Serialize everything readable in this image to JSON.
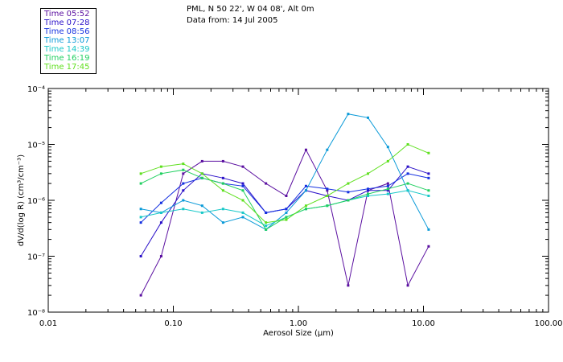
{
  "header": {
    "line1": "PML, N 50 22', W 04 08', Alt 0m",
    "line2": "Data from: 14 Jul 2005"
  },
  "legend": [
    {
      "label": "Time 05:52",
      "color": "#5a0fa0"
    },
    {
      "label": "Time 07:28",
      "color": "#2a10c8"
    },
    {
      "label": "Time 08:56",
      "color": "#1430e0"
    },
    {
      "label": "Time 13:07",
      "color": "#0a9ad8"
    },
    {
      "label": "Time 14:39",
      "color": "#18c8c8"
    },
    {
      "label": "Time 16:19",
      "color": "#20d060"
    },
    {
      "label": "Time 17:45",
      "color": "#60e020"
    }
  ],
  "chart_data": {
    "type": "line",
    "xscale": "log",
    "yscale": "log",
    "xlabel": "Aerosol Size (μm)",
    "ylabel": "dV/d(log R) (cm³/cm⁻³)",
    "xlim": [
      0.01,
      100.0
    ],
    "ylim": [
      1e-08,
      0.0001
    ],
    "xtick_values": [
      0.01,
      0.1,
      1.0,
      10.0,
      100.0
    ],
    "xtick_labels": [
      "0.01",
      "0.10",
      "1.00",
      "10.00",
      "100.00"
    ],
    "ytick_values": [
      1e-08,
      1e-07,
      1e-06,
      1e-05,
      0.0001
    ],
    "ytick_labels": [
      "10⁻⁸",
      "10⁻⁷",
      "10⁻⁶",
      "10⁻⁵",
      "10⁻⁴"
    ],
    "x": [
      0.055,
      0.08,
      0.12,
      0.17,
      0.25,
      0.36,
      0.55,
      0.8,
      1.15,
      1.7,
      2.5,
      3.6,
      5.2,
      7.5,
      11.0
    ],
    "series": [
      {
        "name": "Time 05:52",
        "color": "#5a0fa0",
        "values": [
          2e-08,
          1e-07,
          3e-06,
          5e-06,
          5e-06,
          4e-06,
          2e-06,
          1.2e-06,
          8e-06,
          1.5e-06,
          3e-08,
          1.5e-06,
          2e-06,
          3e-08,
          1.5e-07
        ]
      },
      {
        "name": "Time 07:28",
        "color": "#2a10c8",
        "values": [
          1e-07,
          4e-07,
          1.5e-06,
          3e-06,
          2.5e-06,
          2e-06,
          6e-07,
          7e-07,
          1.5e-06,
          1.2e-06,
          1e-06,
          1.5e-06,
          1.5e-06,
          4e-06,
          3e-06
        ]
      },
      {
        "name": "Time 08:56",
        "color": "#1430e0",
        "values": [
          4e-07,
          9e-07,
          2e-06,
          2.5e-06,
          2e-06,
          1.8e-06,
          6e-07,
          7e-07,
          1.8e-06,
          1.6e-06,
          1.4e-06,
          1.6e-06,
          1.8e-06,
          3e-06,
          2.5e-06
        ]
      },
      {
        "name": "Time 13:07",
        "color": "#0a9ad8",
        "values": [
          7e-07,
          6e-07,
          1e-06,
          8e-07,
          4e-07,
          5e-07,
          3e-07,
          6e-07,
          1.5e-06,
          8e-06,
          3.5e-05,
          3e-05,
          9e-06,
          1.5e-06,
          3e-07
        ]
      },
      {
        "name": "Time 14:39",
        "color": "#18c8c8",
        "values": [
          5e-07,
          6e-07,
          7e-07,
          6e-07,
          7e-07,
          6e-07,
          3.5e-07,
          5e-07,
          7e-07,
          8e-07,
          1e-06,
          1.2e-06,
          1.3e-06,
          1.5e-06,
          1.2e-06
        ]
      },
      {
        "name": "Time 16:19",
        "color": "#20d060",
        "values": [
          2e-06,
          3e-06,
          3.5e-06,
          2.5e-06,
          2e-06,
          1.5e-06,
          3e-07,
          5e-07,
          7e-07,
          8e-07,
          1e-06,
          1.3e-06,
          1.6e-06,
          2e-06,
          1.5e-06
        ]
      },
      {
        "name": "Time 17:45",
        "color": "#60e020",
        "values": [
          3e-06,
          4e-06,
          4.5e-06,
          3e-06,
          1.5e-06,
          1e-06,
          4e-07,
          4.5e-07,
          8e-07,
          1.2e-06,
          2e-06,
          3e-06,
          5e-06,
          1e-05,
          7e-06
        ]
      }
    ]
  }
}
